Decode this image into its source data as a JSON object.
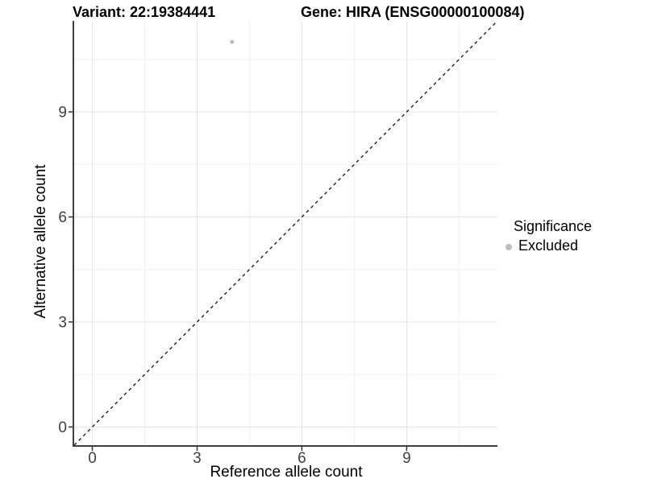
{
  "header": {
    "left_title": "Variant: 22:19384441",
    "right_title": "Gene: HIRA (ENSG00000100084)"
  },
  "legend": {
    "title": "Significance",
    "items": [
      {
        "label": "Excluded",
        "color": "#bdbdbd"
      }
    ]
  },
  "chart_data": {
    "type": "scatter",
    "xlabel": "Reference allele count",
    "ylabel": "Alternative allele count",
    "xlim": [
      -0.52,
      11.6
    ],
    "ylim": [
      -0.52,
      11.6
    ],
    "x_breaks": [
      0,
      3,
      6,
      9
    ],
    "y_breaks": [
      0,
      3,
      6,
      9
    ],
    "x_minor_breaks": [
      1.5,
      4.5,
      7.5,
      10.5
    ],
    "y_minor_breaks": [
      1.5,
      4.5,
      7.5,
      10.5
    ],
    "points": [
      {
        "x": 4,
        "y": 11,
        "series": "Excluded"
      }
    ],
    "series": [
      {
        "name": "Excluded",
        "color": "#bdbdbd"
      }
    ],
    "identity_line": {
      "slope": 1,
      "intercept": 0,
      "style": "dashed",
      "color": "#111111"
    },
    "grid": true,
    "legend_position": "right",
    "colors": {
      "background": "#ffffff",
      "grid_major": "#e3e3e3",
      "grid_minor": "#f0f0f0",
      "axis_line": "#3f3f3f",
      "tick_mark": "#333333",
      "tick_label": "#404040"
    }
  }
}
